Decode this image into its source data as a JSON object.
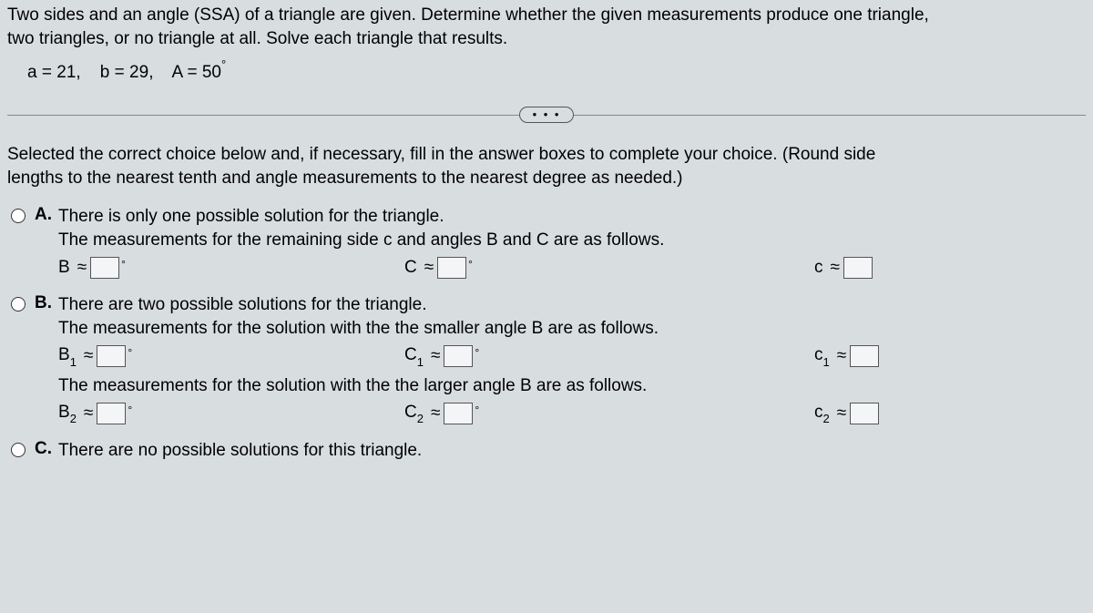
{
  "question": {
    "line1": "Two sides and an angle (SSA) of a triangle are given. Determine whether the given measurements produce one triangle,",
    "line2": "two triangles, or no triangle at all. Solve each triangle that results."
  },
  "given": {
    "a_label": "a",
    "a_val": "21",
    "b_label": "b",
    "b_val": "29",
    "A_label": "A",
    "A_val": "50",
    "eq": "=",
    "comma": ",",
    "deg": "°"
  },
  "ellipsis": "• • •",
  "instructions": {
    "line1": "Selected the correct choice below and, if necessary, fill in the answer boxes to complete your choice. (Round side",
    "line2": "lengths to the nearest tenth and angle measurements to the nearest degree as needed.)"
  },
  "choiceA": {
    "letter": "A.",
    "line1": "There is only one possible solution for the triangle.",
    "line2": "The measurements for the remaining side c and angles B and C are as follows.",
    "B_label": "B",
    "C_angle_label": "C",
    "c_side_label": "c"
  },
  "choiceB": {
    "letter": "B.",
    "line1": "There are two possible solutions for the triangle.",
    "line2": "The measurements for the solution with the the smaller angle B are as follows.",
    "line3": "The measurements for the solution with the the larger angle B are as follows.",
    "B1_label_base": "B",
    "C1_angle_label_base": "C",
    "c1_side_label_base": "c",
    "B2_label_base": "B",
    "C2_angle_label_base": "C",
    "c2_side_label_base": "c",
    "sub1": "1",
    "sub2": "2"
  },
  "choiceC": {
    "letter": "C.",
    "line1": "There are no possible solutions for this triangle."
  },
  "approx": "≈",
  "deg": "°"
}
